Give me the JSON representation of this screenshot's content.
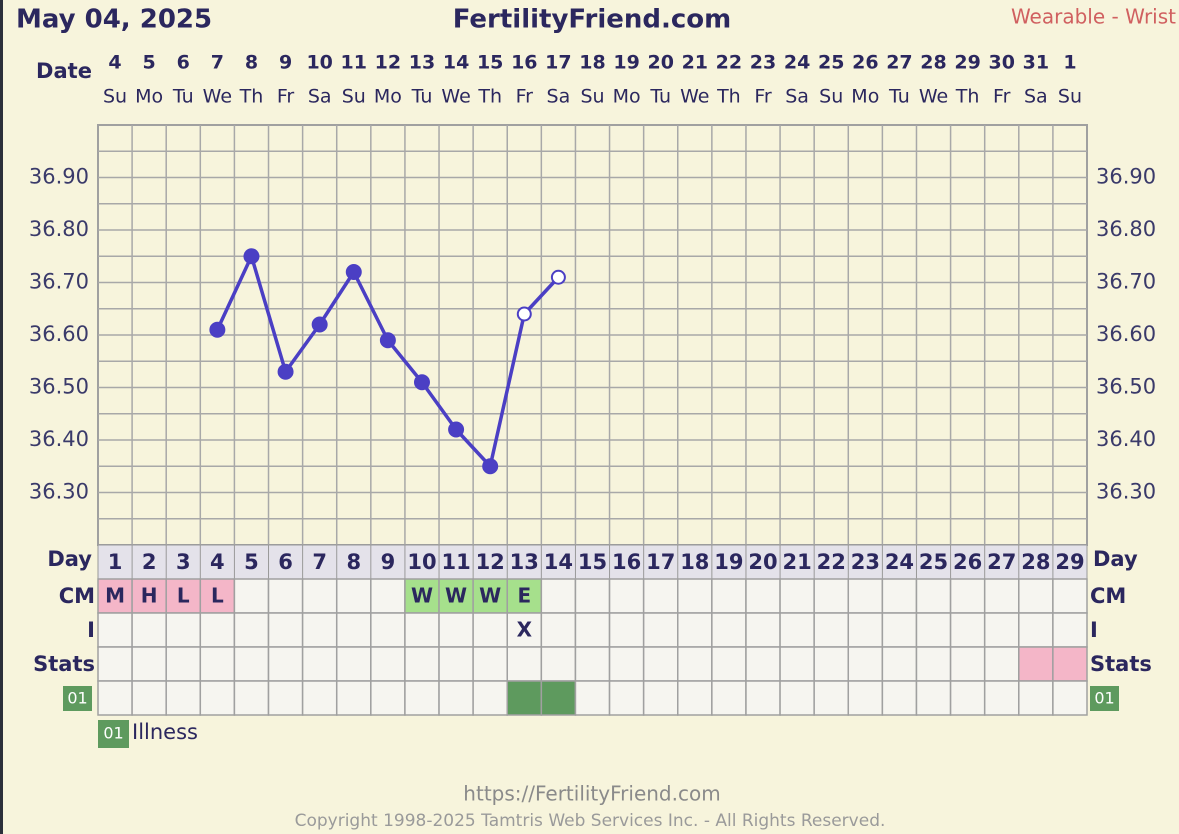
{
  "header": {
    "date": "May 04, 2025",
    "site": "FertilityFriend.com",
    "source": "Wearable - Wrist"
  },
  "chart_data": {
    "type": "line",
    "date_label": "Date",
    "dates": [
      4,
      5,
      6,
      7,
      8,
      9,
      10,
      11,
      12,
      13,
      14,
      15,
      16,
      17,
      18,
      19,
      20,
      21,
      22,
      23,
      24,
      25,
      26,
      27,
      28,
      29,
      30,
      31,
      1
    ],
    "weekdays": [
      "Su",
      "Mo",
      "Tu",
      "We",
      "Th",
      "Fr",
      "Sa",
      "Su",
      "Mo",
      "Tu",
      "We",
      "Th",
      "Fr",
      "Sa",
      "Su",
      "Mo",
      "Tu",
      "We",
      "Th",
      "Fr",
      "Sa",
      "Su",
      "Mo",
      "Tu",
      "We",
      "Th",
      "Fr",
      "Sa",
      "Su"
    ],
    "day_label": "Day",
    "categories": [
      1,
      2,
      3,
      4,
      5,
      6,
      7,
      8,
      9,
      10,
      11,
      12,
      13,
      14,
      15,
      16,
      17,
      18,
      19,
      20,
      21,
      22,
      23,
      24,
      25,
      26,
      27,
      28,
      29
    ],
    "values": [
      null,
      null,
      null,
      36.61,
      36.75,
      36.53,
      36.62,
      36.72,
      36.59,
      36.51,
      36.42,
      36.35,
      36.64,
      36.71,
      null,
      null,
      null,
      null,
      null,
      null,
      null,
      null,
      null,
      null,
      null,
      null,
      null,
      null,
      null
    ],
    "markers": [
      null,
      null,
      null,
      "filled",
      "filled",
      "filled",
      "filled",
      "filled",
      "filled",
      "filled",
      "filled",
      "filled",
      "hollow",
      "hollow",
      null,
      null,
      null,
      null,
      null,
      null,
      null,
      null,
      null,
      null,
      null,
      null,
      null,
      null,
      null
    ],
    "color": "#4b3fc4",
    "ylim": [
      36.2,
      37.0
    ],
    "yticks": [
      {
        "value": 36.3,
        "label": "36.30"
      },
      {
        "value": 36.4,
        "label": "36.40"
      },
      {
        "value": 36.5,
        "label": "36.50"
      },
      {
        "value": 36.6,
        "label": "36.60"
      },
      {
        "value": 36.7,
        "label": "36.70"
      },
      {
        "value": 36.8,
        "label": "36.80"
      },
      {
        "value": 36.9,
        "label": "36.90"
      }
    ],
    "minor_yticks": [
      36.25,
      36.35,
      36.45,
      36.55,
      36.65,
      36.75,
      36.85,
      36.95
    ],
    "grid": true,
    "rows": [
      {
        "label": "CM",
        "texts": [
          "M",
          "H",
          "L",
          "L",
          null,
          null,
          null,
          null,
          null,
          "W",
          "W",
          "W",
          "E",
          null,
          null,
          null,
          null,
          null,
          null,
          null,
          null,
          null,
          null,
          null,
          null,
          null,
          null,
          null,
          null
        ],
        "fills": [
          "#f4b6c8",
          "#f4b6c8",
          "#f4b6c8",
          "#f4b6c8",
          null,
          null,
          null,
          null,
          null,
          "#a6e08c",
          "#a6e08c",
          "#a6e08c",
          "#a6e08c",
          null,
          null,
          null,
          null,
          null,
          null,
          null,
          null,
          null,
          null,
          null,
          null,
          null,
          null,
          null,
          null
        ]
      },
      {
        "label": "I",
        "texts": [
          null,
          null,
          null,
          null,
          null,
          null,
          null,
          null,
          null,
          null,
          null,
          null,
          "X",
          null,
          null,
          null,
          null,
          null,
          null,
          null,
          null,
          null,
          null,
          null,
          null,
          null,
          null,
          null,
          null
        ],
        "fills": [
          null,
          null,
          null,
          null,
          null,
          null,
          null,
          null,
          null,
          null,
          null,
          null,
          null,
          null,
          null,
          null,
          null,
          null,
          null,
          null,
          null,
          null,
          null,
          null,
          null,
          null,
          null,
          null,
          null
        ]
      },
      {
        "label": "Stats",
        "texts": [
          null,
          null,
          null,
          null,
          null,
          null,
          null,
          null,
          null,
          null,
          null,
          null,
          null,
          null,
          null,
          null,
          null,
          null,
          null,
          null,
          null,
          null,
          null,
          null,
          null,
          null,
          null,
          null,
          null
        ],
        "fills": [
          null,
          null,
          null,
          null,
          null,
          null,
          null,
          null,
          null,
          null,
          null,
          null,
          null,
          null,
          null,
          null,
          null,
          null,
          null,
          null,
          null,
          null,
          null,
          null,
          null,
          null,
          null,
          "#f4b6c8",
          "#f4b6c8"
        ]
      },
      {
        "label": "01",
        "label_fill": "#5e9a5e",
        "texts": [
          null,
          null,
          null,
          null,
          null,
          null,
          null,
          null,
          null,
          null,
          null,
          null,
          null,
          null,
          null,
          null,
          null,
          null,
          null,
          null,
          null,
          null,
          null,
          null,
          null,
          null,
          null,
          null,
          null
        ],
        "fills": [
          null,
          null,
          null,
          null,
          null,
          null,
          null,
          null,
          null,
          null,
          null,
          null,
          "#5e9a5e",
          "#5e9a5e",
          null,
          null,
          null,
          null,
          null,
          null,
          null,
          null,
          null,
          null,
          null,
          null,
          null,
          null,
          null
        ]
      }
    ],
    "legend": [
      {
        "code": "01",
        "label": "Illness",
        "color": "#5e9a5e"
      }
    ]
  },
  "footer": {
    "url": "https://FertilityFriend.com",
    "copyright": "Copyright 1998-2025 Tamtris Web Services Inc. - All Rights Reserved."
  }
}
